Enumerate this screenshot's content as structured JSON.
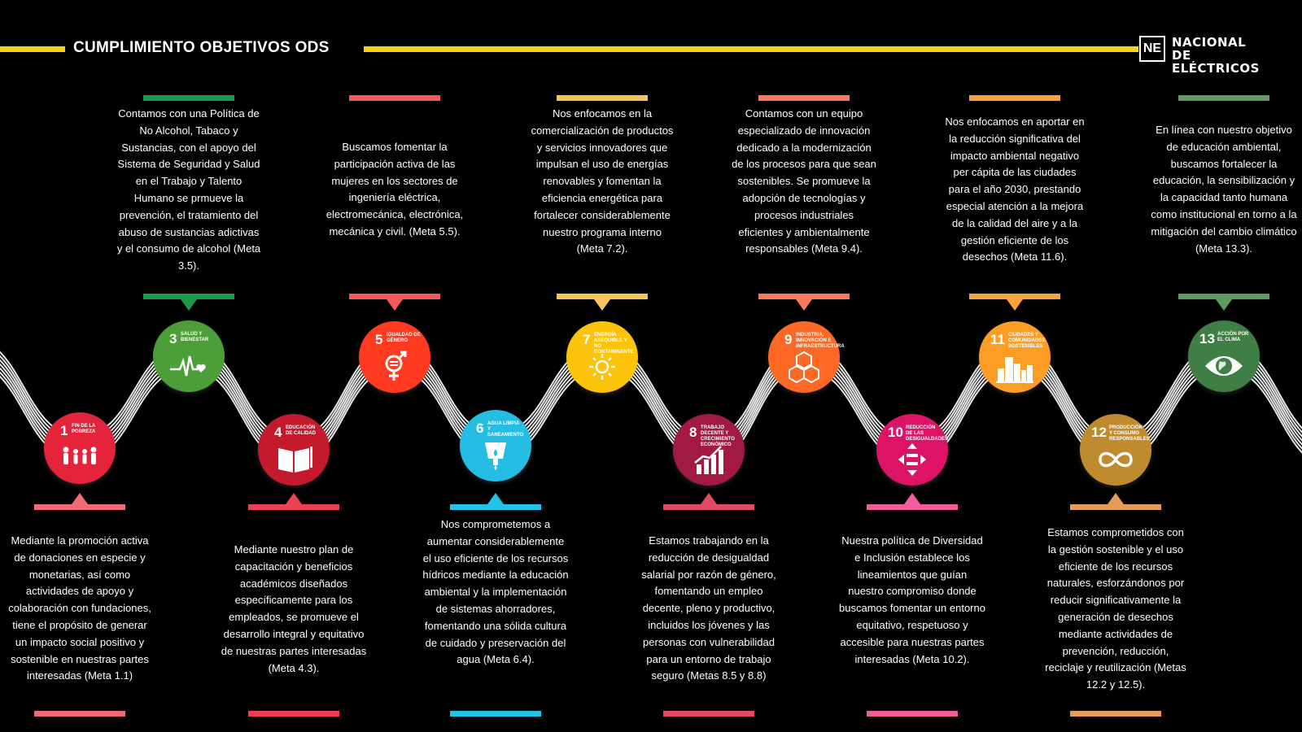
{
  "header": {
    "title": "CUMPLIMIENTO OBJETIVOS ODS"
  },
  "logo": {
    "mark": "NE",
    "line1": "NACIONAL DE",
    "line2": "ELÉCTRICOS"
  },
  "goals": [
    {
      "number": "1",
      "label": "Fin de la pobreza",
      "icon": "family-icon",
      "color": "#e5243b",
      "bar_color": "#f26b74",
      "text": "Mediante la promoción activa de donaciones en especie y monetarias, así como actividades de apoyo y colaboración con fundaciones, tiene el propósito de generar un impacto social positivo y sostenible en nuestras partes interesadas (Meta 1.1)"
    },
    {
      "number": "3",
      "label": "Salud y bienestar",
      "icon": "heartbeat-icon",
      "color": "#4c9f38",
      "bar_color": "#1a9a4a",
      "text": "Contamos con una Política de No Alcohol, Tabaco y Sustancias, con el apoyo del Sistema de Seguridad y Salud en el Trabajo y Talento Humano se prmueve la prevención, el tratamiento del abuso de sustancias adictivas y el consumo de alcohol (Meta 3.5)."
    },
    {
      "number": "4",
      "label": "Educación de calidad",
      "icon": "book-icon",
      "color": "#c5192d",
      "bar_color": "#ee4052",
      "text": "Mediante nuestro plan de capacitación y beneficios académicos diseñados específicamente para los empleados, se promueve el desarrollo integral y equitativo de nuestras partes interesadas (Meta 4.3)."
    },
    {
      "number": "5",
      "label": "Igualdad de género",
      "icon": "gender-icon",
      "color": "#ff3a21",
      "bar_color": "#f25a5a",
      "text": "Buscamos fomentar la participación activa de las mujeres en los sectores de ingeniería eléctrica, electromecánica, electrónica, mecánica y civil.  (Meta 5.5)."
    },
    {
      "number": "6",
      "label": "Agua limpia y saneamiento",
      "icon": "water-drop-icon",
      "color": "#26bde2",
      "bar_color": "#22c3e6",
      "text": "Nos comprometemos a aumentar considerablemente el uso eficiente de los recursos hídricos mediante la educación ambiental y la implementación de sistemas ahorradores, fomentando una sólida cultura de cuidado y preservación del agua (Meta 6.4)."
    },
    {
      "number": "7",
      "label": "Energía asequible y no contaminante",
      "icon": "sun-icon",
      "color": "#fcc30b",
      "bar_color": "#f5c55a",
      "text": "Nos enfocamos en la comercialización de productos y servicios innovadores que impulsan el uso de energías renovables y fomentan la eficiencia energética para fortalecer considerablemente nuestro programa interno (Meta 7.2)."
    },
    {
      "number": "8",
      "label": "Trabajo decente y crecimiento económico",
      "icon": "growth-chart-icon",
      "color": "#a21942",
      "bar_color": "#e04a63",
      "text": "Estamos trabajando en la reducción de desigualdad salarial por razón de género, fomentando un empleo decente, pleno y productivo, incluidos los jóvenes y las personas con vulnerabilidad para un entorno de trabajo seguro (Metas 8.5 y 8.8)"
    },
    {
      "number": "9",
      "label": "Industria, innovación e infraestructura",
      "icon": "cubes-icon",
      "color": "#fd6925",
      "bar_color": "#f77a5c",
      "text": "Contamos con un equipo especializado de innovación dedicado a la modernización de los procesos para que sean sostenibles. Se promueve la adopción de tecnologías y procesos industriales eficientes y ambientalmente responsables (Meta 9.4)."
    },
    {
      "number": "10",
      "label": "Reducción de las desigualdades",
      "icon": "equality-icon",
      "color": "#dd1367",
      "bar_color": "#f55c9d",
      "text": "Nuestra política de Diversidad e Inclusión establece los lineamientos que guían nuestro compromiso donde buscamos fomentar un entorno equitativo, respetuoso y accesible para nuestras partes interesadas (Meta 10.2)."
    },
    {
      "number": "11",
      "label": "Ciudades y comunidades sostenibles",
      "icon": "city-icon",
      "color": "#fd9d24",
      "bar_color": "#f9a13c",
      "text": "Nos enfocamos en aportar en la reducción significativa del impacto ambiental negativo per cápita de las ciudades para el año 2030, prestando especial atención a la mejora de la calidad del aire y a la gestión eficiente de los desechos (Meta 11.6)."
    },
    {
      "number": "12",
      "label": "Producción y consumo responsables",
      "icon": "infinity-icon",
      "color": "#bf8b2e",
      "bar_color": "#e59b5a",
      "text": "Estamos comprometidos con la gestión sostenible y el uso eficiente de los recursos naturales, esforzándonos por reducir significativamente la generación de desechos mediante actividades de prevención, reducción, reciclaje y reutilización (Metas 12.2 y 12.5)."
    },
    {
      "number": "13",
      "label": "Acción por el clima",
      "icon": "eye-globe-icon",
      "color": "#3f7e44",
      "bar_color": "#5e9a5f",
      "text": "En línea con nuestro objetivo de educación ambiental, buscamos fortalecer la educación, la sensibilización y la capacidad tanto humana como institucional en torno a la mitigación del cambio climático (Meta 13.3)."
    }
  ]
}
